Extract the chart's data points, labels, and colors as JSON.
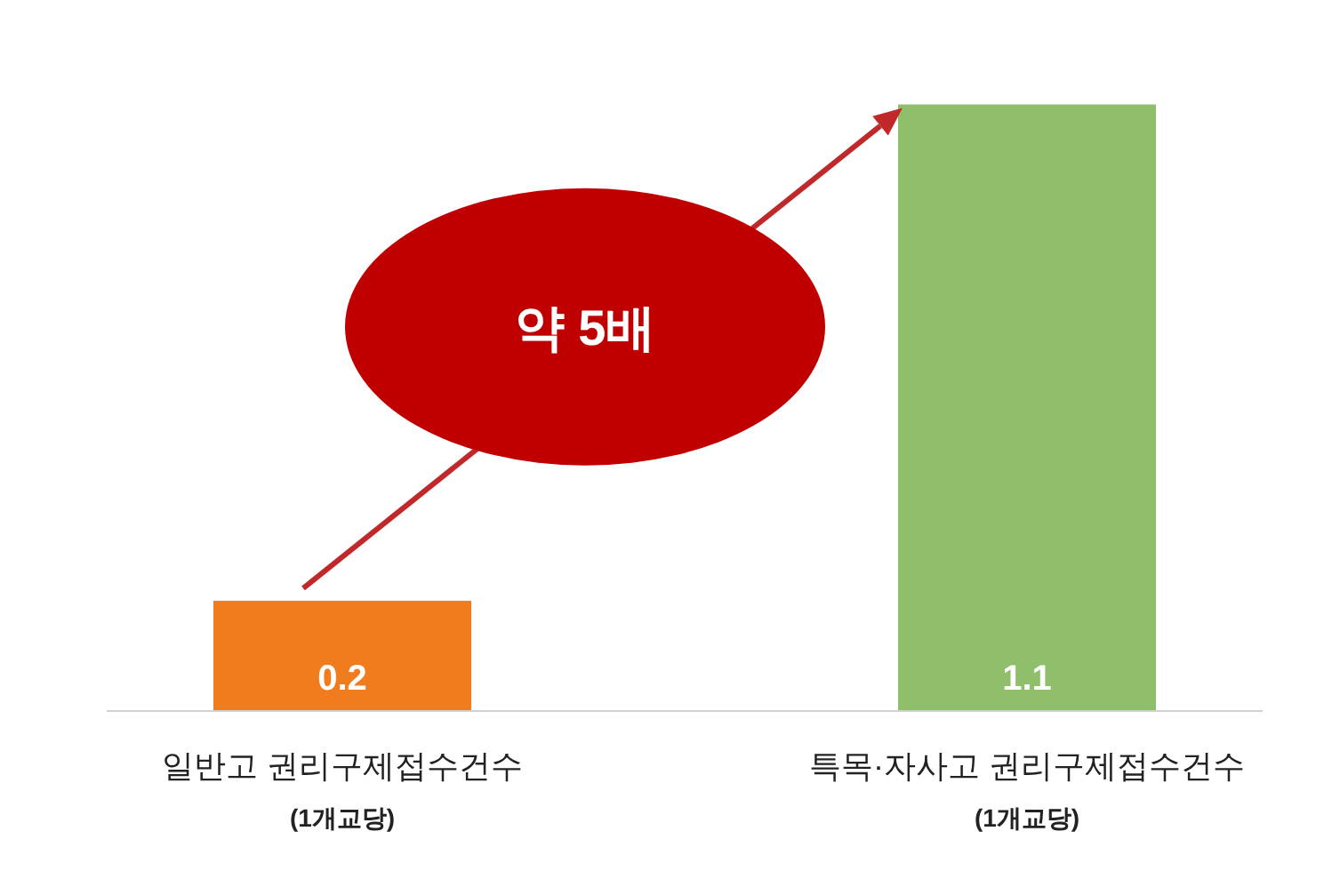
{
  "chart_data": {
    "type": "bar",
    "categories": [
      "일반고 권리구제접수건수\n(1개교당)",
      "특목·자사고 권리구제접수건수\n(1개교당)"
    ],
    "values": [
      0.2,
      1.1
    ],
    "colors": [
      "#f07c1e",
      "#8fbf6a"
    ],
    "data_labels": true,
    "relative": false,
    "annotations": [
      "약 5배"
    ]
  }
}
